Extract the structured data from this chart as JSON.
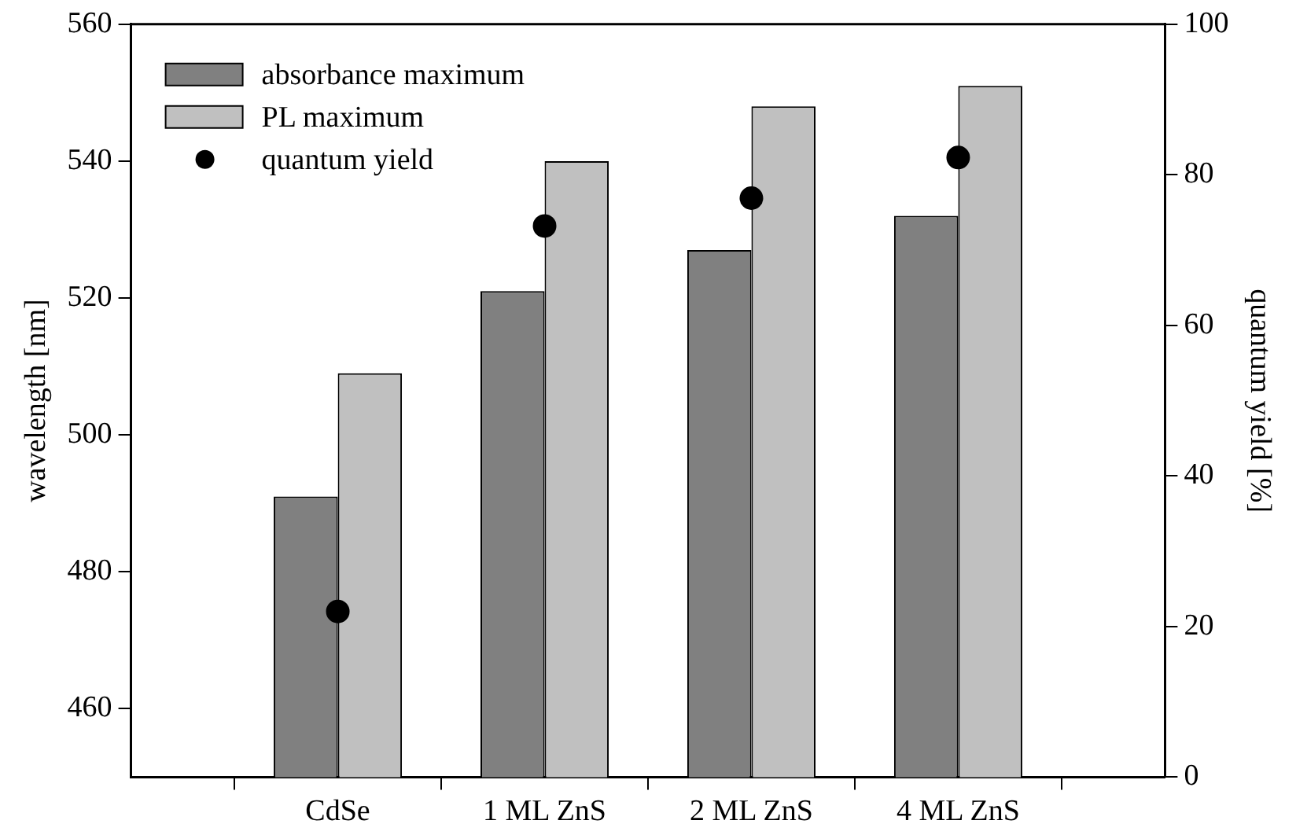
{
  "chart_data": {
    "type": "bar",
    "categories": [
      "CdSe",
      "1 ML ZnS",
      "2 ML ZnS",
      "4 ML ZnS"
    ],
    "series": [
      {
        "name": "absorbance maximum",
        "color": "#808080",
        "values": [
          491,
          521,
          527,
          532
        ]
      },
      {
        "name": "PL maximum",
        "color": "#c0c0c0",
        "values": [
          509,
          540,
          548,
          551
        ]
      },
      {
        "name": "quantum yield",
        "type": "scatter",
        "axis": "y2",
        "color": "#000000",
        "values": [
          22,
          73.2,
          76.9,
          82.3
        ]
      }
    ],
    "ylabel": "wavelength [nm]",
    "y2label": "quantum yield [%]",
    "ylim": [
      450,
      560
    ],
    "yticks": [
      460,
      480,
      500,
      520,
      540,
      560
    ],
    "y2lim": [
      0,
      100
    ],
    "y2ticks": [
      0,
      20,
      40,
      60,
      80,
      100
    ],
    "legend": "top left",
    "marker": "circle"
  }
}
